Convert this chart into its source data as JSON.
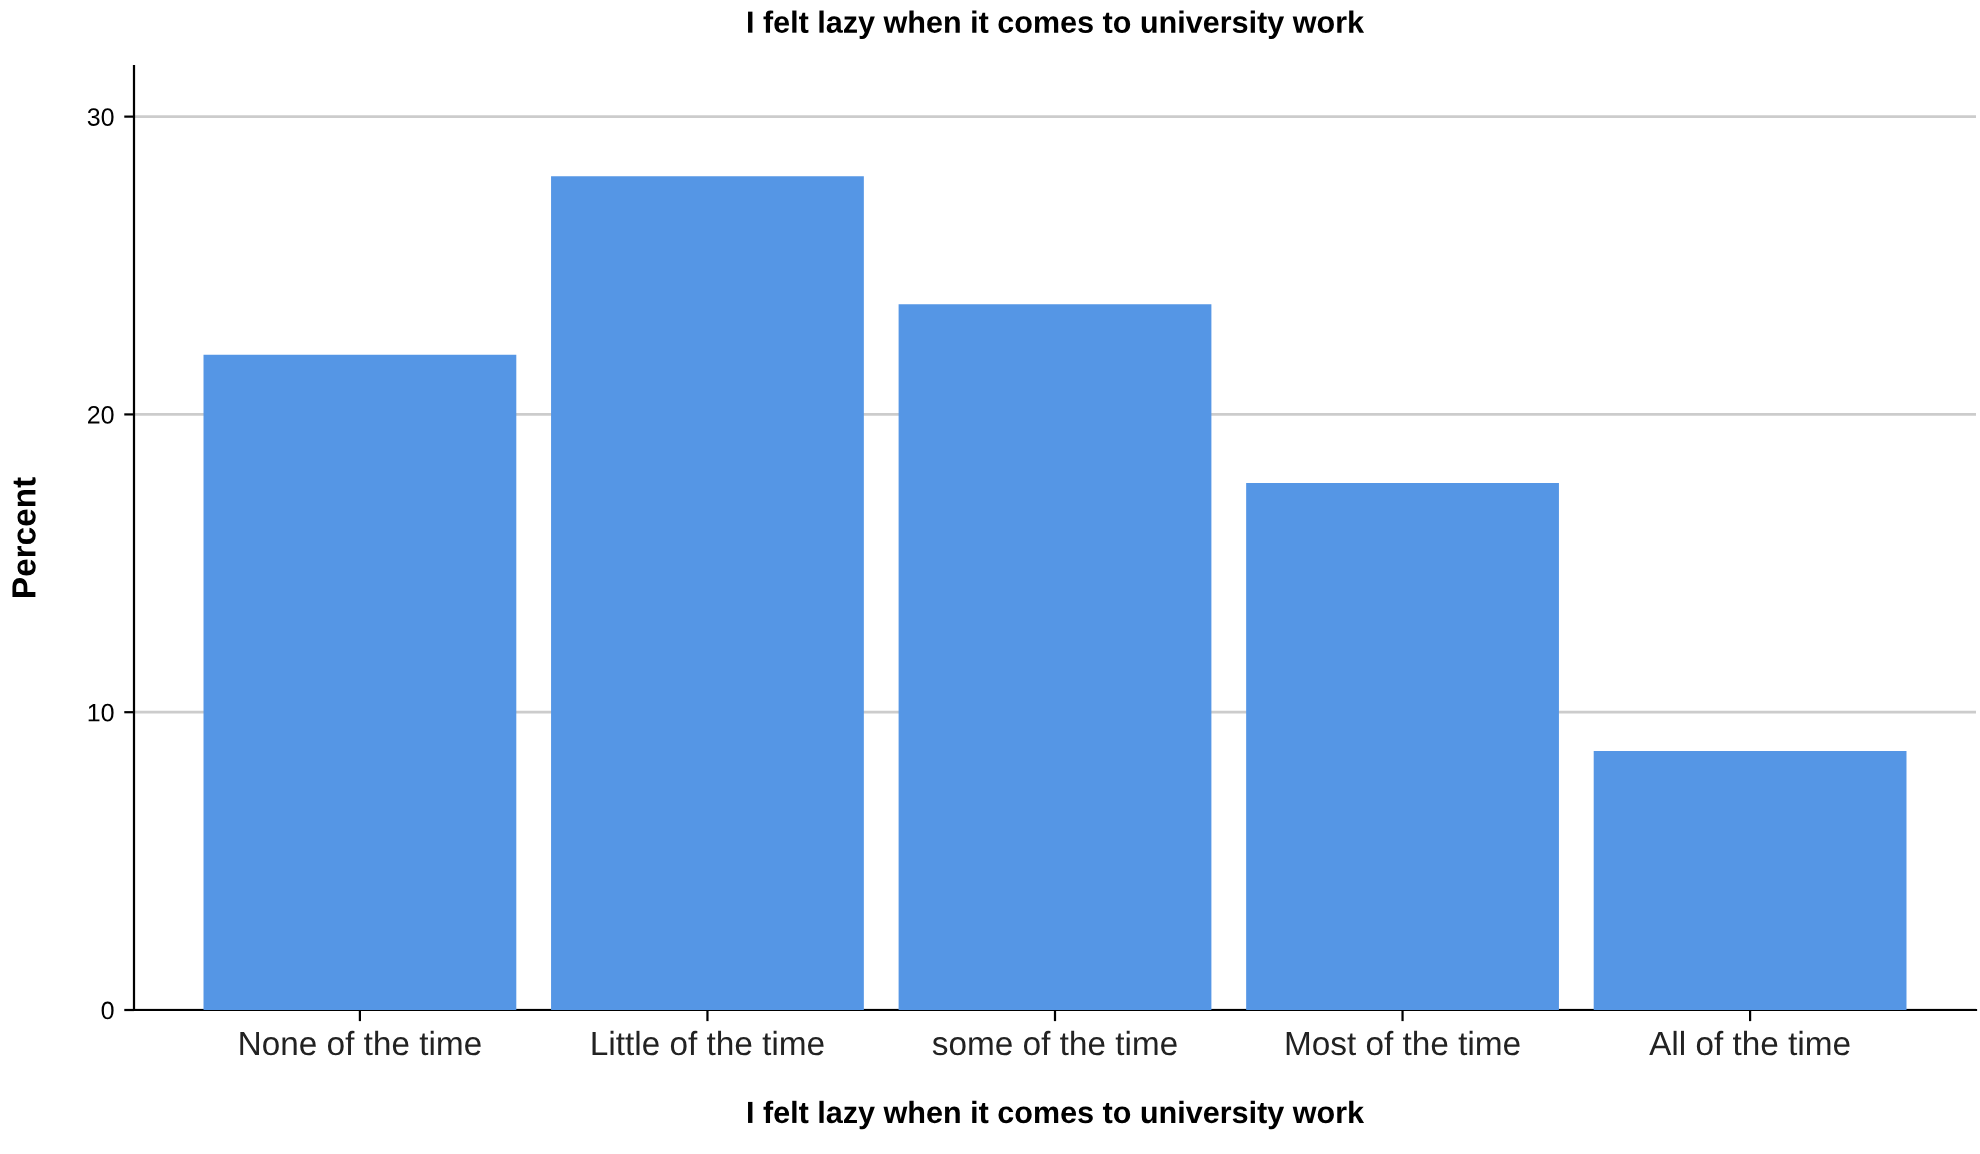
{
  "chart_data": {
    "type": "bar",
    "title": "I felt lazy when it comes to university work",
    "xlabel": "I felt lazy when it comes to university work",
    "ylabel": "Percent",
    "categories": [
      "None of the time",
      "Little of the time",
      "some of the time",
      "Most of the time",
      "All of the time"
    ],
    "values": [
      22.0,
      28.0,
      23.7,
      17.7,
      8.7
    ],
    "color": "#5596e5",
    "ylim": [
      0,
      31.7
    ],
    "yticks": [
      0,
      10,
      20,
      30
    ],
    "grid": "y"
  }
}
